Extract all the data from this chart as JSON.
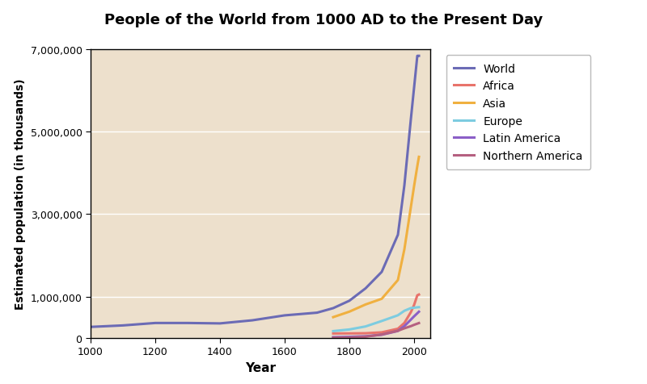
{
  "title": "People of the World from 1000 AD to the Present Day",
  "title_bg_color": "#E87C74",
  "xlabel": "Year",
  "ylabel": "Estimated population (in thousands)",
  "plot_bg_color": "#EDE0CC",
  "fig_bg_color": "#FFFFFF",
  "xlim": [
    1000,
    2050
  ],
  "ylim": [
    0,
    7000000
  ],
  "yticks": [
    0,
    1000000,
    3000000,
    5000000,
    7000000
  ],
  "ytick_labels": [
    "0",
    "1,000,000",
    "3,000,000",
    "5,000,000",
    "7,000,000"
  ],
  "xticks": [
    1000,
    1200,
    1400,
    1600,
    1800,
    2000
  ],
  "series": {
    "World": {
      "color": "#6B6BB5",
      "years": [
        1000,
        1100,
        1200,
        1300,
        1400,
        1500,
        1600,
        1700,
        1750,
        1800,
        1850,
        1900,
        1950,
        1970,
        1990,
        2000,
        2010,
        2015
      ],
      "values": [
        265000,
        301000,
        360000,
        360000,
        350000,
        425000,
        545000,
        610000,
        720000,
        900000,
        1200000,
        1600000,
        2500000,
        3700000,
        5300000,
        6070000,
        6840000,
        6840000
      ]
    },
    "Africa": {
      "color": "#E8736B",
      "years": [
        1750,
        1800,
        1850,
        1900,
        1950,
        1970,
        1990,
        2000,
        2010,
        2015
      ],
      "values": [
        106000,
        107000,
        111000,
        133000,
        221000,
        360000,
        622000,
        796000,
        1031000,
        1050000
      ]
    },
    "Asia": {
      "color": "#F0B040",
      "years": [
        1750,
        1800,
        1850,
        1900,
        1950,
        1970,
        1990,
        2000,
        2010,
        2015
      ],
      "values": [
        502000,
        635000,
        809000,
        947000,
        1402000,
        2147000,
        3168000,
        3680000,
        4164000,
        4390000
      ]
    },
    "Europe": {
      "color": "#7DCCE0",
      "years": [
        1750,
        1800,
        1850,
        1900,
        1950,
        1970,
        1990,
        2000,
        2010,
        2015
      ],
      "values": [
        163000,
        203000,
        276000,
        408000,
        547000,
        656000,
        721000,
        730000,
        740000,
        743000
      ]
    },
    "Latin America": {
      "color": "#8B5FC7",
      "years": [
        1750,
        1800,
        1850,
        1900,
        1950,
        1970,
        1990,
        2000,
        2010,
        2015
      ],
      "values": [
        16000,
        24000,
        38000,
        74000,
        167000,
        285000,
        441000,
        521000,
        596000,
        634000
      ]
    },
    "Northern America": {
      "color": "#B56080",
      "years": [
        1750,
        1800,
        1850,
        1900,
        1950,
        1970,
        1990,
        2000,
        2010,
        2015
      ],
      "values": [
        2000,
        7000,
        26000,
        82000,
        172000,
        231000,
        283000,
        315000,
        344000,
        358000
      ]
    }
  },
  "grid_color": "#FFFFFF",
  "grid_linewidth": 1.0,
  "title_fontsize": 13,
  "axis_label_fontsize": 11,
  "tick_fontsize": 9,
  "legend_fontsize": 10
}
